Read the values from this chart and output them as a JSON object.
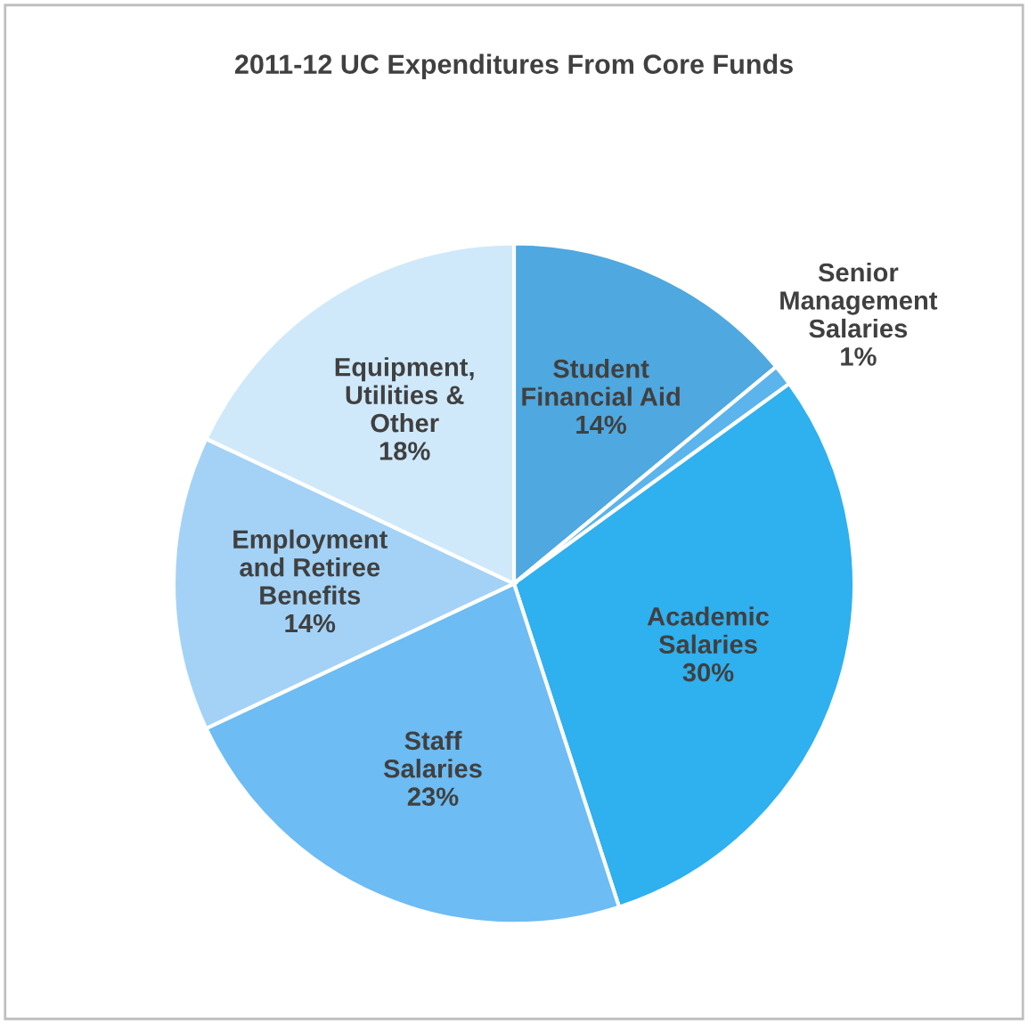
{
  "chart_data": {
    "type": "pie",
    "title": "2011-12 UC Expenditures From Core Funds",
    "categories": [
      "Student\nFinancial Aid",
      "Senior\nManagement\nSalaries",
      "Academic\nSalaries",
      "Staff\nSalaries",
      "Employment\nand Retiree\nBenefits",
      "Equipment,\nUtilities &\nOther"
    ],
    "values": [
      14,
      1,
      30,
      23,
      14,
      18
    ],
    "value_labels": [
      "14%",
      "1%",
      "30%",
      "23%",
      "14%",
      "18%"
    ],
    "colors": [
      "#4fa8df",
      "#5cb4ec",
      "#2fb0ef",
      "#6dbcf3",
      "#a3d2f6",
      "#cfe9fb"
    ],
    "legend": false
  }
}
